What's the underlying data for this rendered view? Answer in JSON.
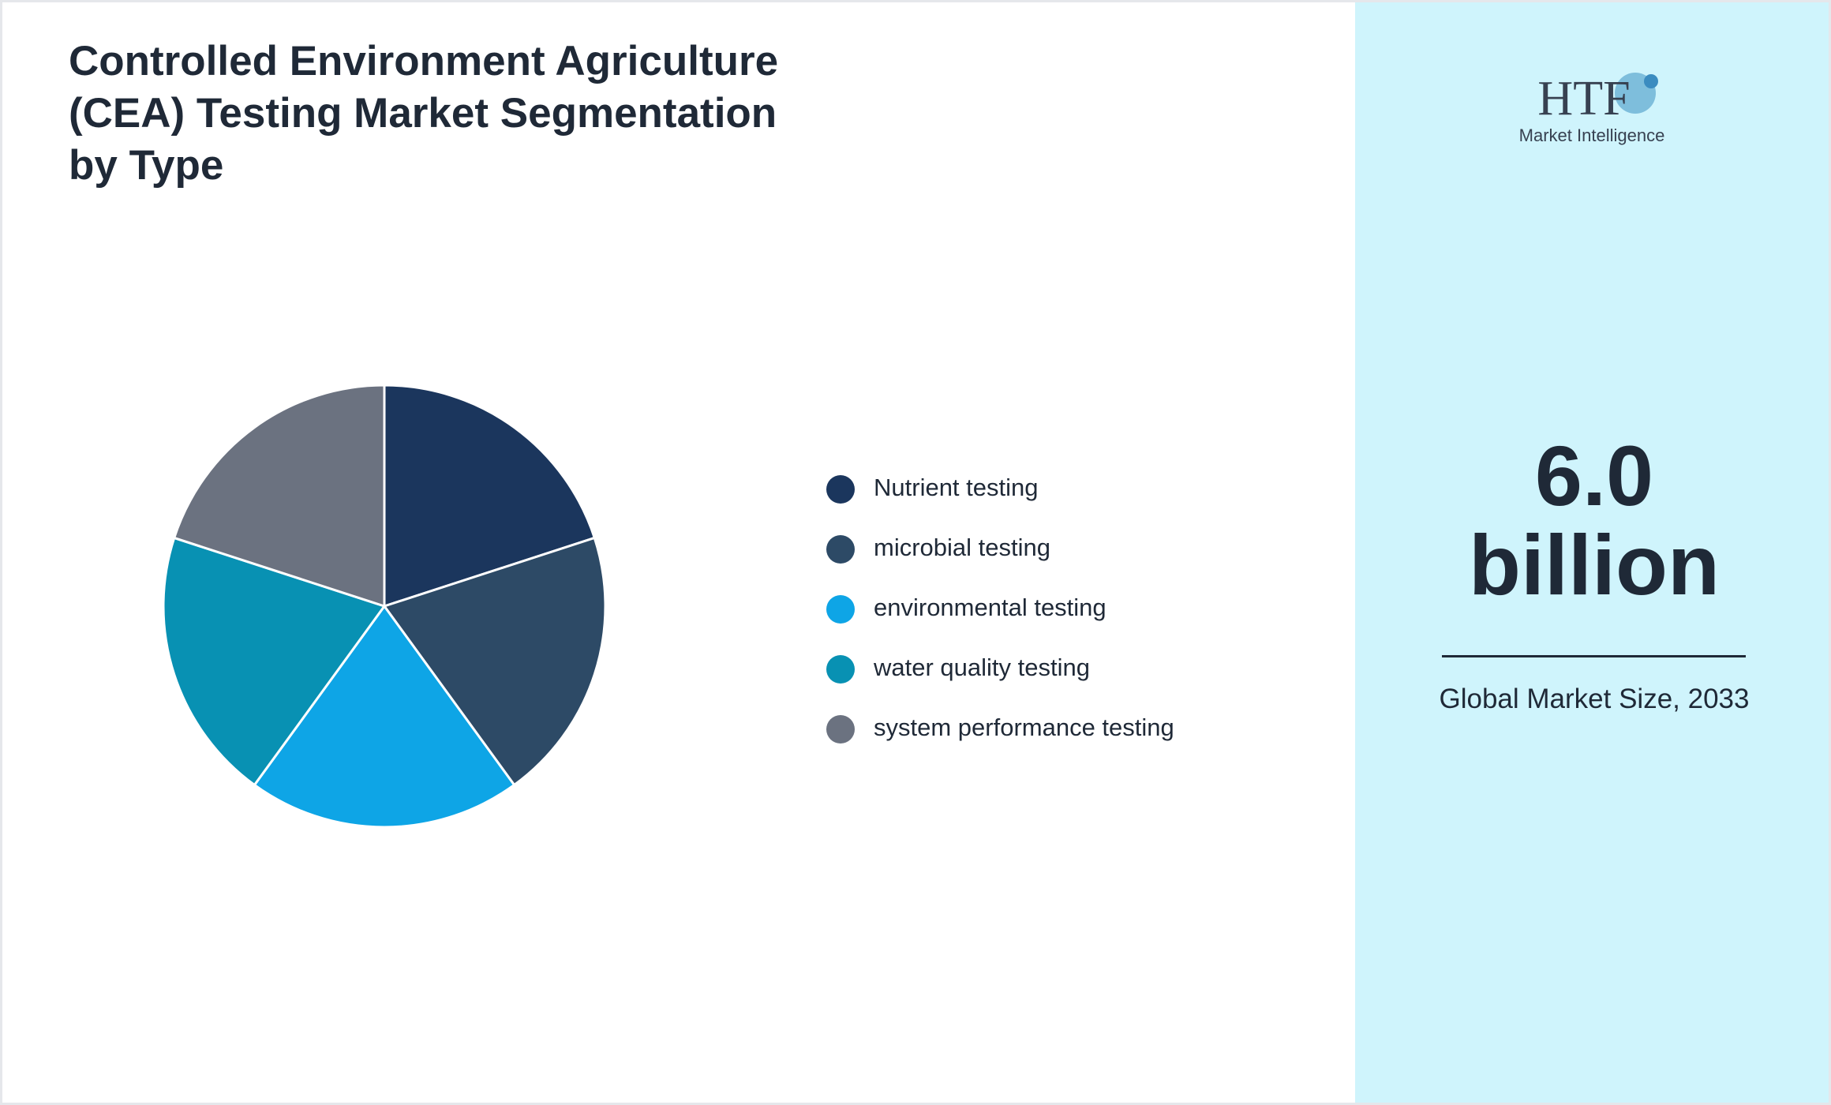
{
  "chart_data": {
    "type": "pie",
    "title": "Controlled Environment Agriculture (CEA) Testing Market Segmentation by Type",
    "categories": [
      "Nutrient testing",
      "microbial testing",
      "environmental testing",
      "water quality testing",
      "system performance testing"
    ],
    "values": [
      20,
      20,
      20,
      20,
      20
    ],
    "colors": [
      "#1b365d",
      "#2d4a66",
      "#0ea5e6",
      "#0891b3",
      "#6b7280"
    ]
  },
  "side_panel": {
    "logo": {
      "brand": "HTF",
      "tagline": "Market Intelligence"
    },
    "market_value": "6.0",
    "market_unit": "billion",
    "caption": "Global Market Size, 2033"
  }
}
